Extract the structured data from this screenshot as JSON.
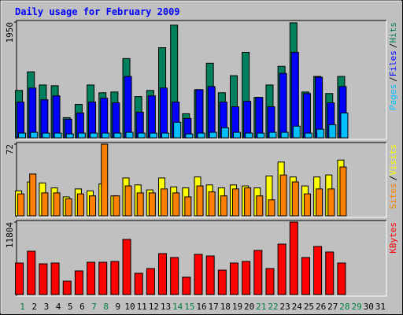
{
  "chart_data": [
    {
      "type": "bar",
      "title": "Daily usage for February 2009",
      "ylim": [
        0,
        1950
      ],
      "yticks": [
        1950
      ],
      "legend_separator": "/",
      "series": [
        {
          "name": "Hits",
          "color": "#00805c",
          "values": [
            798,
            1112,
            890,
            877,
            340,
            563,
            890,
            759,
            772,
            1335,
            694,
            798,
            1518,
            1898,
            406,
            811,
            1256,
            759,
            1047,
            1440,
            681,
            890,
            1204,
            1937,
            772,
            1034,
            746,
            1034,
            null,
            null,
            null
          ]
        },
        {
          "name": "Files",
          "color": "#0000ff",
          "values": [
            602,
            838,
            641,
            707,
            314,
            419,
            602,
            667,
            589,
            1034,
            432,
            707,
            838,
            602,
            327,
            811,
            864,
            602,
            523,
            615,
            681,
            523,
            1086,
            1440,
            746,
            1021,
            589,
            864,
            null,
            null,
            null
          ]
        },
        {
          "name": "Pages",
          "color": "#00c0ff",
          "values": [
            79,
            92,
            79,
            79,
            66,
            79,
            79,
            79,
            79,
            92,
            79,
            79,
            79,
            262,
            66,
            79,
            92,
            170,
            92,
            79,
            79,
            92,
            92,
            196,
            79,
            144,
            222,
            419,
            null,
            null,
            null
          ]
        }
      ]
    },
    {
      "type": "bar",
      "ylim": [
        0,
        72
      ],
      "yticks": [
        72
      ],
      "legend_separator": "/",
      "series": [
        {
          "name": "Visits",
          "color": "#ffff00",
          "values": [
            25,
            34,
            33,
            28,
            19,
            27,
            25,
            32,
            20,
            38,
            31,
            26,
            38,
            29,
            28,
            39,
            31,
            28,
            31,
            30,
            28,
            40,
            54,
            39,
            30,
            39,
            41,
            56,
            null,
            null,
            null
          ]
        },
        {
          "name": "Sites",
          "color": "#ff8000",
          "values": [
            22,
            42,
            23,
            23,
            17,
            22,
            20,
            72,
            20,
            30,
            23,
            23,
            27,
            23,
            19,
            30,
            24,
            20,
            27,
            28,
            20,
            16,
            41,
            34,
            22,
            27,
            27,
            49,
            null,
            null,
            null
          ]
        }
      ]
    },
    {
      "type": "bar",
      "ylim": [
        0,
        11804
      ],
      "yticks": [
        11804
      ],
      "categories": [
        "1",
        "2",
        "3",
        "4",
        "5",
        "6",
        "7",
        "8",
        "9",
        "10",
        "11",
        "12",
        "13",
        "14",
        "15",
        "16",
        "17",
        "18",
        "19",
        "20",
        "21",
        "22",
        "23",
        "24",
        "25",
        "26",
        "27",
        "28",
        "29",
        "30",
        "31"
      ],
      "category_colors": [
        "#008040",
        "#000000",
        "#000000",
        "#000000",
        "#000000",
        "#000000",
        "#008040",
        "#008040",
        "#000000",
        "#000000",
        "#000000",
        "#000000",
        "#000000",
        "#008040",
        "#008040",
        "#000000",
        "#000000",
        "#000000",
        "#000000",
        "#000000",
        "#008040",
        "#008040",
        "#000000",
        "#000000",
        "#000000",
        "#000000",
        "#000000",
        "#008040",
        "#008040",
        "#000000",
        "#000000"
      ],
      "series": [
        {
          "name": "KBytes",
          "color": "#ff0000",
          "values": [
            5132,
            7057,
            5004,
            5132,
            2181,
            3849,
            5260,
            5260,
            5389,
            8981,
            3464,
            4234,
            6672,
            6030,
            2823,
            6544,
            6287,
            3977,
            5132,
            5389,
            7185,
            4234,
            8212,
            11804,
            6030,
            7827,
            6928,
            5132,
            null,
            null,
            null
          ]
        }
      ]
    }
  ]
}
